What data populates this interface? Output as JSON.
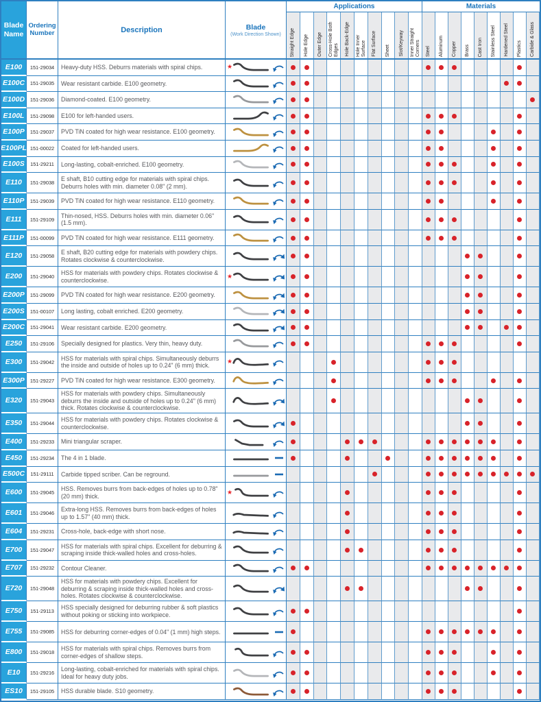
{
  "colors": {
    "header_text_blue": "#1b75bc",
    "grid_blue": "#2e7fc0",
    "name_column_bg": "#29a3dc",
    "dot_red": "#d8232a",
    "star_red": "#e8232a",
    "column_shade_gray": "#e9eaec",
    "blade_dark": "#3f4043",
    "blade_gray": "#97999c",
    "blade_silver": "#b4b6b9",
    "blade_gold": "#bd9140",
    "blade_bronze": "#8d5a38",
    "arrow_blue": "#1a6ab3"
  },
  "table": {
    "headers": {
      "blade_name": "Blade Name",
      "ordering_number": "Ordering Number",
      "description": "Description",
      "blade": "Blade",
      "blade_sub": "(Work Direction Shown)",
      "applications_group": "Applications",
      "materials_group": "Materials",
      "application_columns": [
        "Straight Edge",
        "Hole Edge",
        "Outer Edge",
        "Cross-Hole Both Edges",
        "Hole Back-Edge",
        "Hole Inner Surface",
        "Flat Surface",
        "Sheet",
        "Slot/Keyway",
        "Inner Straight Corners"
      ],
      "material_columns": [
        "Steel",
        "Aluminum",
        "Copper",
        "Brass",
        "Cast Iron",
        "Stainless Steel",
        "Hardened Steel",
        "Plastics",
        "Carbide & Glass"
      ]
    },
    "rows": [
      {
        "name": "E100",
        "order": "151-29034",
        "desc": "Heavy-duty HSS. Deburrs materials with spiral chips.",
        "lines": 1,
        "star": true,
        "arrow": "arc",
        "shape": "s",
        "color": "dark",
        "flip": false,
        "apps": [
          1,
          2
        ],
        "mats": [
          1,
          2,
          3,
          8
        ]
      },
      {
        "name": "E100C",
        "order": "151-29035",
        "desc": "Wear resistant carbide. E100 geometry.",
        "lines": 1,
        "star": false,
        "arrow": "arc",
        "shape": "s",
        "color": "dark",
        "flip": false,
        "apps": [
          1,
          2
        ],
        "mats": [
          7,
          8
        ]
      },
      {
        "name": "E100D",
        "order": "151-29036",
        "desc": "Diamond-coated. E100 geometry.",
        "lines": 1,
        "star": false,
        "arrow": "arc",
        "shape": "s",
        "color": "gray",
        "flip": false,
        "apps": [
          1,
          2
        ],
        "mats": [
          9
        ]
      },
      {
        "name": "E100L",
        "order": "151-29098",
        "desc": "E100 for left-handed users.",
        "lines": 1,
        "star": false,
        "arrow": "arc",
        "shape": "s",
        "color": "dark",
        "flip": true,
        "apps": [
          1,
          2
        ],
        "mats": [
          1,
          2,
          3,
          8
        ]
      },
      {
        "name": "E100P",
        "order": "151-29037",
        "desc": "PVD TiN coated for high wear resistance. E100 geometry.",
        "lines": 1,
        "star": false,
        "arrow": "arc",
        "shape": "s",
        "color": "gold",
        "flip": false,
        "apps": [
          1,
          2
        ],
        "mats": [
          1,
          2,
          6,
          8
        ]
      },
      {
        "name": "E100PL",
        "order": "151-00022",
        "desc": "Coated for left-handed users.",
        "lines": 1,
        "star": false,
        "arrow": "arc",
        "shape": "s",
        "color": "gold",
        "flip": true,
        "apps": [
          1,
          2
        ],
        "mats": [
          1,
          2,
          6,
          8
        ]
      },
      {
        "name": "E100S",
        "order": "151-29211",
        "desc": "Long-lasting, cobalt-enriched. E100 geometry.",
        "lines": 1,
        "star": false,
        "arrow": "arc",
        "shape": "s",
        "color": "silver",
        "flip": false,
        "apps": [
          1,
          2
        ],
        "mats": [
          1,
          2,
          3,
          6,
          8
        ]
      },
      {
        "name": "E110",
        "order": "151-29038",
        "desc": "E shaft, B10 cutting edge for materials with spiral chips. Deburrs holes with min. diameter 0.08\" (2 mm).",
        "lines": 2,
        "star": false,
        "arrow": "arc",
        "shape": "s",
        "color": "dark",
        "flip": false,
        "apps": [
          1,
          2
        ],
        "mats": [
          1,
          2,
          3,
          6,
          8
        ]
      },
      {
        "name": "E110P",
        "order": "151-29039",
        "desc": "PVD TiN coated for high wear resistance. E110 geometry.",
        "lines": 1,
        "star": false,
        "arrow": "arc",
        "shape": "s",
        "color": "gold",
        "flip": false,
        "apps": [
          1,
          2
        ],
        "mats": [
          1,
          2,
          6,
          8
        ]
      },
      {
        "name": "E111",
        "order": "151-29109",
        "desc": "Thin-nosed, HSS. Deburrs holes with min. diameter 0.06\" (1.5 mm).",
        "lines": 2,
        "star": false,
        "arrow": "arc",
        "shape": "s",
        "color": "dark",
        "flip": false,
        "apps": [
          1,
          2
        ],
        "mats": [
          1,
          2,
          3,
          8
        ]
      },
      {
        "name": "E111P",
        "order": "151-00099",
        "desc": "PVD TiN coated for high wear resistance. E111 geometry.",
        "lines": 1,
        "star": false,
        "arrow": "arc",
        "shape": "s",
        "color": "gold",
        "flip": false,
        "apps": [
          1,
          2
        ],
        "mats": [
          1,
          2,
          3,
          8
        ]
      },
      {
        "name": "E120",
        "order": "151-29058",
        "desc": "E shaft, B20 cutting edge for materials with powdery chips. Rotates clockwise & counterclockwise.",
        "lines": 2,
        "star": false,
        "arrow": "arc2",
        "shape": "s",
        "color": "dark",
        "flip": false,
        "apps": [
          1,
          2
        ],
        "mats": [
          4,
          5,
          8
        ]
      },
      {
        "name": "E200",
        "order": "151-29040",
        "desc": "HSS for materials with powdery chips. Rotates clockwise & counterclockwise.",
        "lines": 2,
        "star": true,
        "arrow": "arc2",
        "shape": "s",
        "color": "dark",
        "flip": false,
        "apps": [
          1,
          2
        ],
        "mats": [
          4,
          5,
          8
        ]
      },
      {
        "name": "E200P",
        "order": "151-29099",
        "desc": "PVD TiN coated for high wear resistance. E200 geometry.",
        "lines": 1,
        "star": false,
        "arrow": "arc2",
        "shape": "s",
        "color": "gold",
        "flip": false,
        "apps": [
          1,
          2
        ],
        "mats": [
          4,
          5,
          8
        ]
      },
      {
        "name": "E200S",
        "order": "151-00107",
        "desc": "Long lasting, cobalt enriched. E200 geometry.",
        "lines": 1,
        "star": false,
        "arrow": "arc2",
        "shape": "s",
        "color": "silver",
        "flip": false,
        "apps": [
          1,
          2
        ],
        "mats": [
          4,
          5,
          8
        ]
      },
      {
        "name": "E200C",
        "order": "151-29041",
        "desc": "Wear resistant carbide. E200 geometry.",
        "lines": 1,
        "star": false,
        "arrow": "arc2",
        "shape": "s",
        "color": "dark",
        "flip": false,
        "apps": [
          1,
          2
        ],
        "mats": [
          4,
          5,
          7,
          8
        ]
      },
      {
        "name": "E250",
        "order": "151-29106",
        "desc": "Specially designed for plastics. Very thin, heavy duty.",
        "lines": 1,
        "star": false,
        "arrow": "arc",
        "shape": "s",
        "color": "gray",
        "flip": false,
        "apps": [
          1,
          2
        ],
        "mats": [
          1,
          2,
          3,
          8
        ]
      },
      {
        "name": "E300",
        "order": "151-29042",
        "desc": "HSS for materials with spiral chips. Simultaneously deburrs the inside and outside of holes up to 0.24\" (6 mm) thick.",
        "lines": 2,
        "star": true,
        "arrow": "arc",
        "shape": "w",
        "color": "dark",
        "flip": false,
        "apps": [
          4
        ],
        "mats": [
          1,
          2,
          3
        ]
      },
      {
        "name": "E300P",
        "order": "151-29227",
        "desc": "PVD TiN coated for high wear resistance. E300 geometry.",
        "lines": 1,
        "star": false,
        "arrow": "arc",
        "shape": "w",
        "color": "gold",
        "flip": false,
        "apps": [
          4
        ],
        "mats": [
          1,
          2,
          3,
          6,
          8
        ]
      },
      {
        "name": "E320",
        "order": "151-29043",
        "desc": "HSS for materials with powdery chips. Simultaneously deburrs the inside and outside of holes up to 0.24\" (6 mm) thick. Rotates clockwise & counterclockwise.",
        "lines": 3,
        "star": false,
        "arrow": "arc2",
        "shape": "w",
        "color": "dark",
        "flip": false,
        "apps": [
          4
        ],
        "mats": [
          4,
          5,
          8
        ]
      },
      {
        "name": "E350",
        "order": "151-29044",
        "desc": "HSS for materials with powdery chips. Rotates clockwise & counterclockwise.",
        "lines": 2,
        "star": false,
        "arrow": "arc2",
        "shape": "s",
        "color": "dark",
        "flip": false,
        "apps": [
          1
        ],
        "mats": [
          4,
          5,
          8
        ]
      },
      {
        "name": "E400",
        "order": "151-29233",
        "desc": "Mini triangular scraper.",
        "lines": 1,
        "star": false,
        "arrow": "arc",
        "shape": "tri",
        "color": "dark",
        "flip": false,
        "apps": [
          1,
          5,
          6,
          7
        ],
        "mats": [
          1,
          2,
          3,
          4,
          5,
          6,
          8
        ]
      },
      {
        "name": "E450",
        "order": "151-29234",
        "desc": "The 4 in 1 blade.",
        "lines": 1,
        "star": false,
        "arrow": "dash",
        "shape": "straight",
        "color": "dark",
        "flip": false,
        "apps": [
          1,
          5,
          8
        ],
        "mats": [
          1,
          2,
          3,
          4,
          5,
          6,
          8
        ]
      },
      {
        "name": "E500C",
        "order": "151-29111",
        "desc": "Carbide tipped scriber. Can be reground.",
        "lines": 1,
        "star": false,
        "arrow": "dash",
        "shape": "straight",
        "color": "gray",
        "flip": false,
        "apps": [
          7
        ],
        "mats": [
          1,
          2,
          3,
          4,
          5,
          6,
          7,
          8,
          9
        ]
      },
      {
        "name": "E600",
        "order": "151-29045",
        "desc": "HSS. Removes burrs from back-edges of holes up to 0.78\" (20 mm) thick.",
        "lines": 2,
        "star": true,
        "arrow": "arc",
        "shape": "hook",
        "color": "dark",
        "flip": false,
        "apps": [
          5
        ],
        "mats": [
          1,
          2,
          3,
          8
        ]
      },
      {
        "name": "E601",
        "order": "151-29046",
        "desc": "Extra-long HSS. Removes burrs from back-edges of holes up to 1.57\" (40 mm) thick.",
        "lines": 2,
        "star": false,
        "arrow": "arc",
        "shape": "long",
        "color": "dark",
        "flip": false,
        "apps": [
          5
        ],
        "mats": [
          1,
          2,
          3,
          8
        ]
      },
      {
        "name": "E604",
        "order": "151-29231",
        "desc": "Cross-hole, back-edge with short nose.",
        "lines": 1,
        "star": false,
        "arrow": "arc",
        "shape": "long",
        "color": "dark",
        "flip": false,
        "apps": [
          5
        ],
        "mats": [
          1,
          2,
          3,
          8
        ]
      },
      {
        "name": "E700",
        "order": "151-29047",
        "desc": "HSS for materials with spiral chips. Excellent for deburring & scraping inside thick-walled holes and cross-holes.",
        "lines": 2,
        "star": false,
        "arrow": "arc",
        "shape": "s",
        "color": "dark",
        "flip": false,
        "apps": [
          5,
          6
        ],
        "mats": [
          1,
          2,
          3,
          8
        ]
      },
      {
        "name": "E707",
        "order": "151-29232",
        "desc": "Contour Cleaner.",
        "lines": 1,
        "star": false,
        "arrow": "arc",
        "shape": "s",
        "color": "dark",
        "flip": false,
        "apps": [
          1,
          2
        ],
        "mats": [
          1,
          2,
          3,
          4,
          5,
          6,
          7,
          8
        ]
      },
      {
        "name": "E720",
        "order": "151-29048",
        "desc": "HSS for materials with powdery chips. Excellent for deburring & scraping inside thick-walled holes and cross-holes. Rotates clockwise & counterclockwise.",
        "lines": 3,
        "star": false,
        "arrow": "arc2",
        "shape": "s",
        "color": "dark",
        "flip": false,
        "apps": [
          5,
          6
        ],
        "mats": [
          4,
          5,
          8
        ]
      },
      {
        "name": "E750",
        "order": "151-29113",
        "desc": "HSS specially designed for deburring rubber & soft plastics without poking or sticking into workpiece.",
        "lines": 2,
        "star": false,
        "arrow": "arc",
        "shape": "s",
        "color": "dark",
        "flip": false,
        "apps": [
          1,
          2
        ],
        "mats": [
          8
        ]
      },
      {
        "name": "E755",
        "order": "151-29085",
        "desc": "HSS for deburring corner-edges of 0.04\" (1 mm) high steps.",
        "lines": 2,
        "star": false,
        "arrow": "dash",
        "shape": "straight",
        "color": "dark",
        "flip": false,
        "apps": [
          1
        ],
        "mats": [
          1,
          2,
          3,
          4,
          5,
          6,
          8
        ]
      },
      {
        "name": "E800",
        "order": "151-29018",
        "desc": "HSS for materials with spiral chips. Removes burrs from corner-edges of shallow steps.",
        "lines": 2,
        "star": false,
        "arrow": "arc",
        "shape": "hook",
        "color": "dark",
        "flip": false,
        "apps": [
          1,
          2
        ],
        "mats": [
          1,
          2,
          3,
          6,
          8
        ]
      },
      {
        "name": "E10",
        "order": "151-29216",
        "desc": "Long-lasting, cobalt-enriched for materials with spiral chips. Ideal for heavy duty jobs.",
        "lines": 2,
        "star": false,
        "arrow": "arc",
        "shape": "s",
        "color": "silver",
        "flip": false,
        "apps": [
          1,
          2
        ],
        "mats": [
          1,
          2,
          3,
          6,
          8
        ]
      },
      {
        "name": "ES10",
        "order": "151-29105",
        "desc": "HSS durable blade. S10 geometry.",
        "lines": 1,
        "star": false,
        "arrow": "arc",
        "shape": "s",
        "color": "bronze",
        "flip": false,
        "apps": [
          1,
          2
        ],
        "mats": [
          1,
          2,
          3,
          8
        ]
      }
    ]
  }
}
